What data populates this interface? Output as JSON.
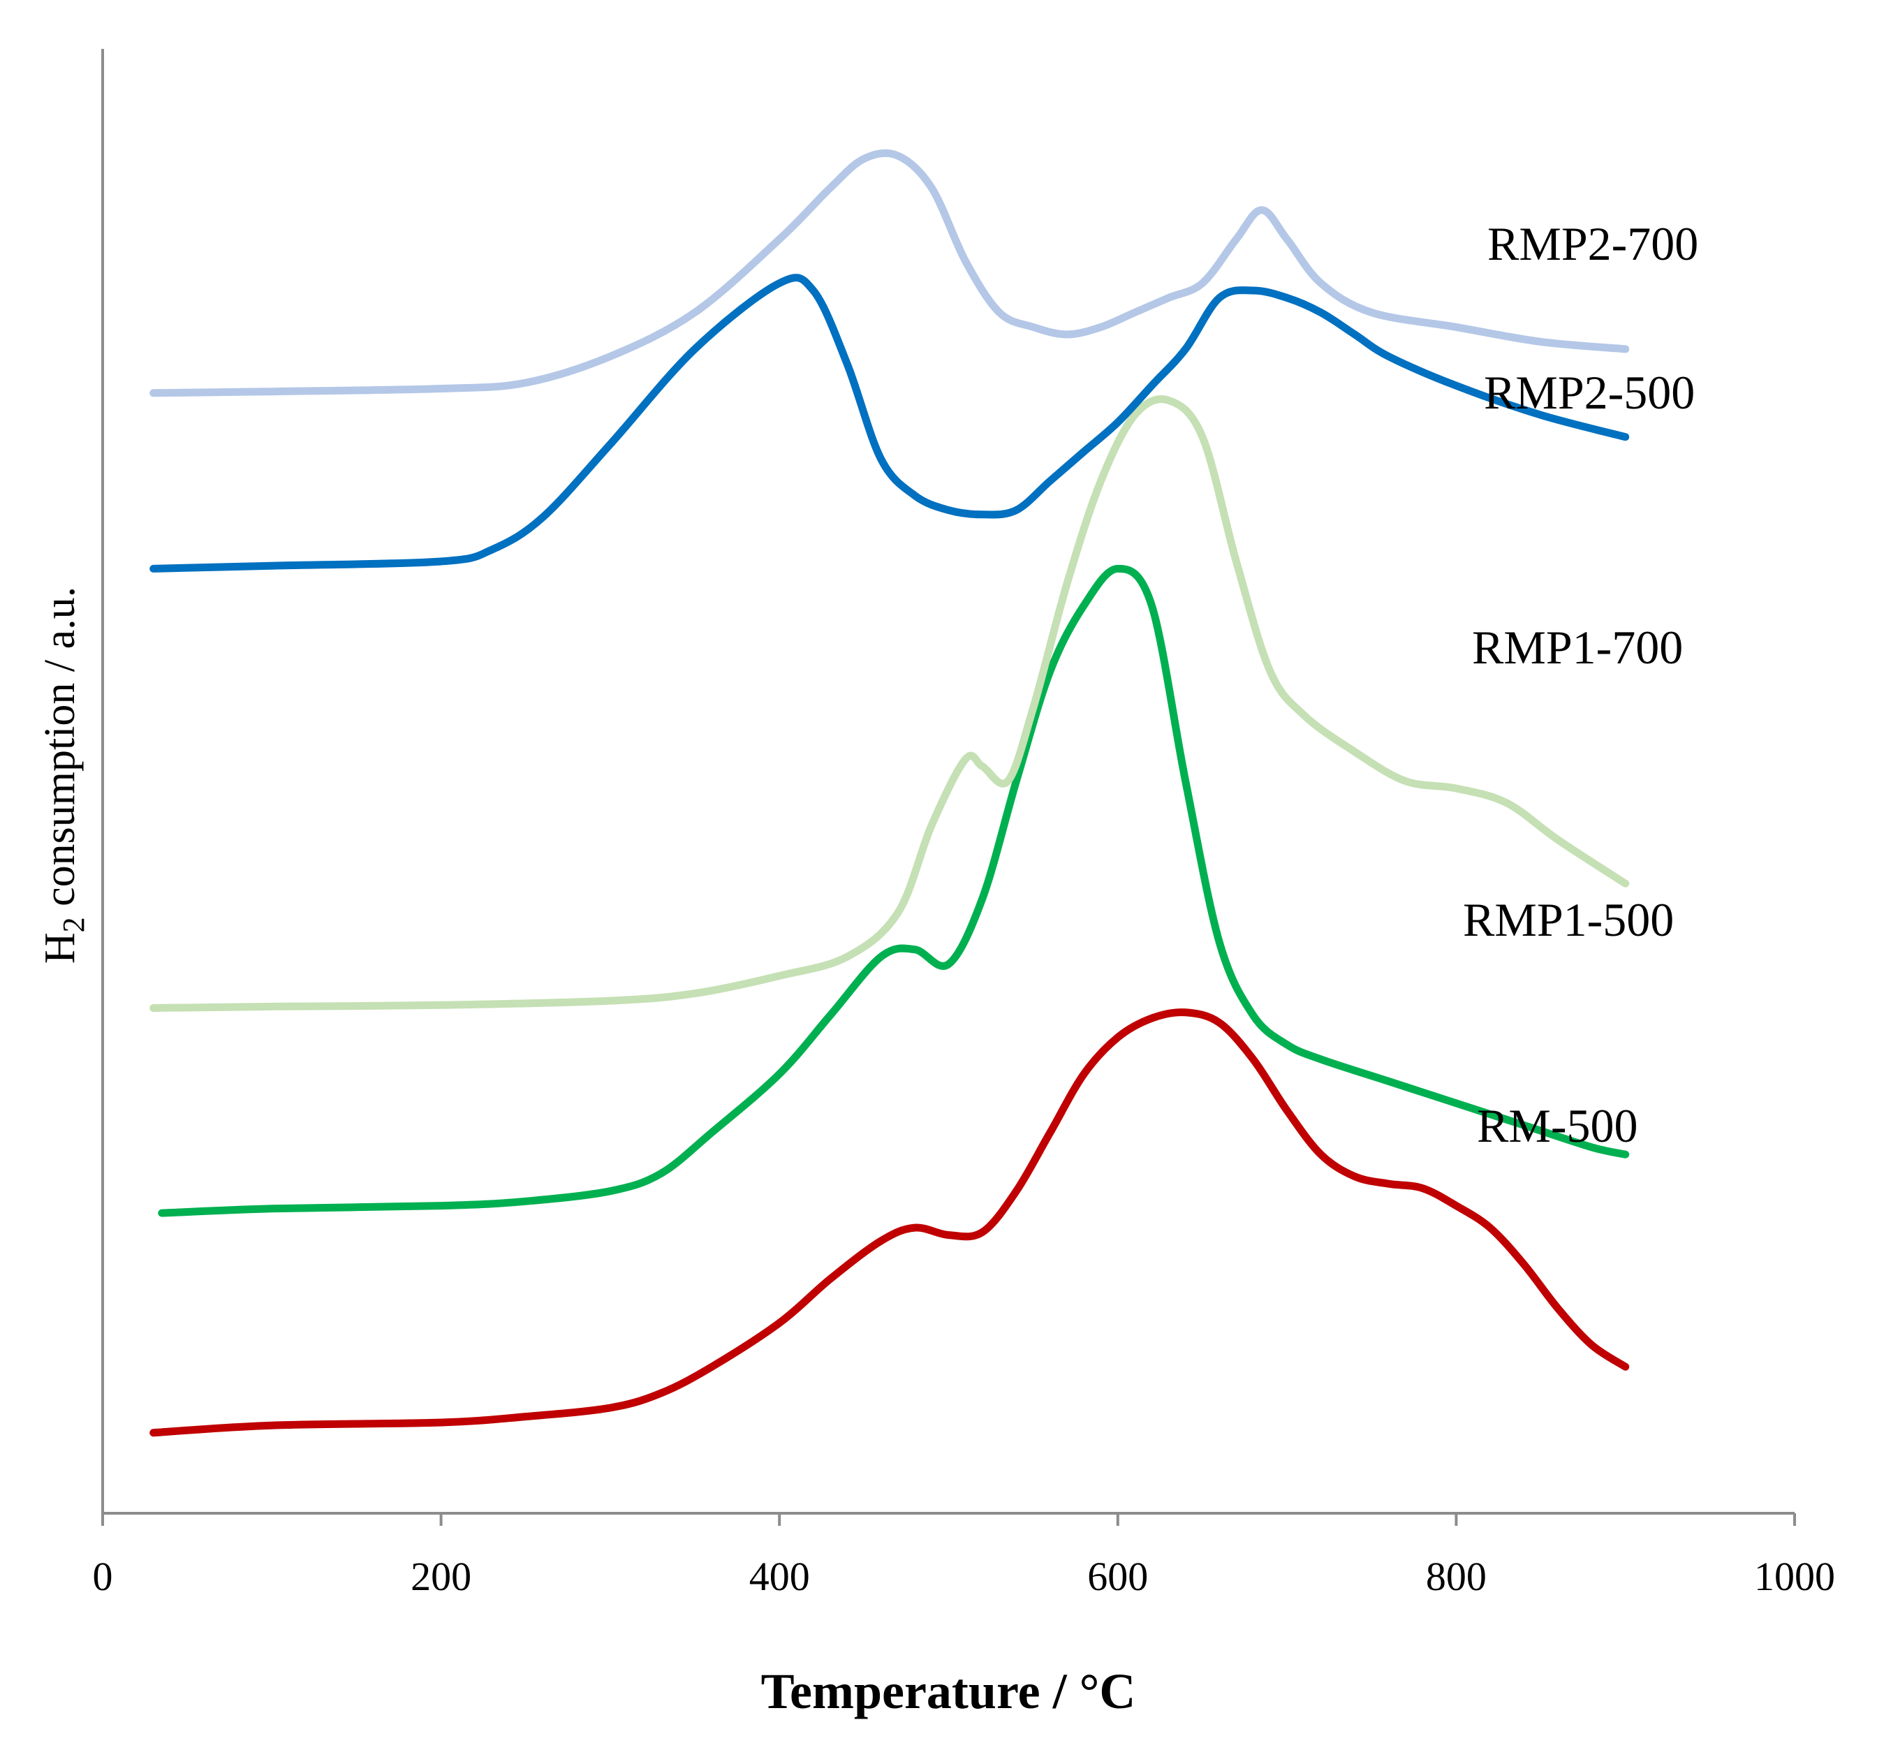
{
  "chart_data": {
    "type": "line",
    "title": "",
    "xlabel": "Temperature / °C",
    "ylabel": {
      "prefix": "H",
      "subscript": "2",
      "suffix": " consumption / a.u."
    },
    "xlim": [
      0,
      1000
    ],
    "ylim": [
      0,
      10
    ],
    "x_ticks": [
      0,
      200,
      400,
      600,
      800,
      1000
    ],
    "grid": false,
    "legend": "inline labels at right",
    "series": [
      {
        "name": "RM-500",
        "color": "#c00000",
        "x": [
          30,
          100,
          200,
          250,
          300,
          330,
          360,
          400,
          430,
          460,
          480,
          500,
          520,
          540,
          560,
          580,
          600,
          620,
          640,
          660,
          680,
          700,
          720,
          740,
          760,
          780,
          800,
          820,
          840,
          860,
          880,
          900
        ],
        "y": [
          0.55,
          0.6,
          0.62,
          0.66,
          0.72,
          0.82,
          1.0,
          1.3,
          1.6,
          1.86,
          1.95,
          1.9,
          1.92,
          2.2,
          2.6,
          3.0,
          3.25,
          3.38,
          3.42,
          3.35,
          3.1,
          2.75,
          2.45,
          2.3,
          2.25,
          2.22,
          2.1,
          1.95,
          1.7,
          1.4,
          1.15,
          1.0
        ]
      },
      {
        "name": "RMP1-500",
        "color": "#00b050",
        "x": [
          35,
          100,
          200,
          250,
          300,
          330,
          360,
          400,
          430,
          460,
          480,
          500,
          520,
          540,
          560,
          580,
          600,
          620,
          640,
          660,
          680,
          700,
          720,
          760,
          800,
          840,
          880,
          900
        ],
        "y": [
          2.05,
          2.08,
          2.1,
          2.13,
          2.2,
          2.32,
          2.6,
          3.0,
          3.4,
          3.8,
          3.85,
          3.75,
          4.2,
          5.0,
          5.75,
          6.2,
          6.45,
          6.2,
          5.0,
          3.9,
          3.4,
          3.2,
          3.1,
          2.95,
          2.8,
          2.65,
          2.5,
          2.45
        ]
      },
      {
        "name": "RMP1-700",
        "color": "#c5e0b4",
        "x": [
          30,
          100,
          200,
          300,
          350,
          400,
          440,
          470,
          490,
          510,
          520,
          535,
          550,
          570,
          590,
          610,
          630,
          650,
          670,
          690,
          710,
          740,
          770,
          800,
          830,
          860,
          900
        ],
        "y": [
          3.45,
          3.46,
          3.47,
          3.5,
          3.55,
          3.67,
          3.8,
          4.1,
          4.7,
          5.15,
          5.1,
          5.0,
          5.5,
          6.35,
          7.05,
          7.5,
          7.6,
          7.35,
          6.5,
          5.75,
          5.45,
          5.2,
          5.0,
          4.95,
          4.85,
          4.6,
          4.3
        ]
      },
      {
        "name": "RMP2-500",
        "color": "#0070c0",
        "x": [
          30,
          100,
          200,
          230,
          260,
          300,
          350,
          400,
          420,
          440,
          460,
          480,
          500,
          520,
          540,
          560,
          580,
          600,
          620,
          640,
          660,
          680,
          700,
          720,
          740,
          760,
          800,
          850,
          900
        ],
        "y": [
          6.45,
          6.47,
          6.5,
          6.58,
          6.8,
          7.3,
          7.95,
          8.4,
          8.35,
          7.85,
          7.2,
          6.95,
          6.85,
          6.82,
          6.85,
          7.05,
          7.25,
          7.45,
          7.7,
          7.95,
          8.3,
          8.35,
          8.3,
          8.2,
          8.05,
          7.9,
          7.7,
          7.5,
          7.35
        ]
      },
      {
        "name": "RMP2-700",
        "color": "#b4c7e7",
        "x": [
          30,
          100,
          200,
          250,
          300,
          350,
          400,
          430,
          450,
          470,
          490,
          510,
          530,
          550,
          570,
          590,
          610,
          630,
          650,
          670,
          685,
          700,
          720,
          750,
          800,
          850,
          900
        ],
        "y": [
          7.65,
          7.66,
          7.68,
          7.72,
          7.9,
          8.2,
          8.7,
          9.05,
          9.25,
          9.27,
          9.05,
          8.55,
          8.2,
          8.1,
          8.05,
          8.1,
          8.2,
          8.3,
          8.4,
          8.7,
          8.9,
          8.7,
          8.4,
          8.2,
          8.1,
          8.0,
          7.95
        ]
      }
    ]
  }
}
